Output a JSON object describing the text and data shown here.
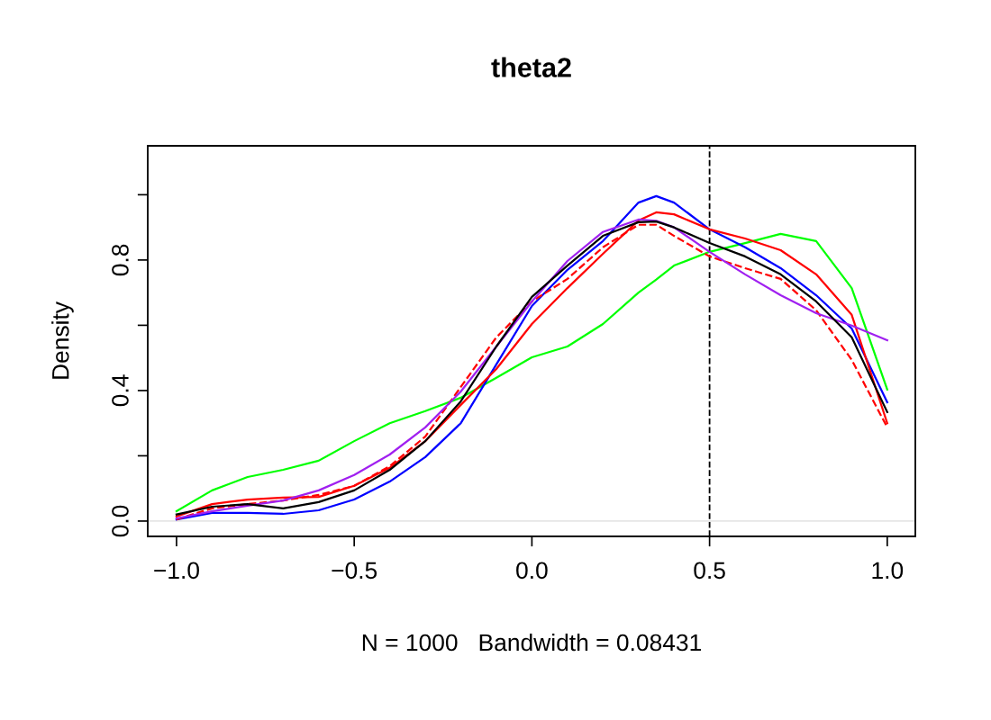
{
  "chart_data": {
    "type": "line",
    "title": "theta2",
    "xlabel": "N = 1000   Bandwidth = 0.08431",
    "ylabel": "Density",
    "x": [
      -1.0,
      -0.9,
      -0.8,
      -0.7,
      -0.6,
      -0.5,
      -0.4,
      -0.3,
      -0.2,
      -0.1,
      0.0,
      0.1,
      0.2,
      0.3,
      0.35,
      0.4,
      0.5,
      0.6,
      0.7,
      0.8,
      0.9,
      1.0
    ],
    "series": [
      {
        "color": "#00ff00",
        "line_style": "solid",
        "values": [
          0.03,
          0.094,
          0.135,
          0.157,
          0.185,
          0.245,
          0.3,
          0.337,
          0.378,
          0.439,
          0.502,
          0.535,
          0.604,
          0.7,
          0.74,
          0.783,
          0.825,
          0.852,
          0.88,
          0.858,
          0.714,
          0.403
        ]
      },
      {
        "color": "#0000ff",
        "line_style": "solid",
        "values": [
          0.005,
          0.025,
          0.025,
          0.022,
          0.033,
          0.066,
          0.121,
          0.196,
          0.3,
          0.48,
          0.659,
          0.77,
          0.858,
          0.976,
          0.996,
          0.976,
          0.894,
          0.839,
          0.775,
          0.692,
          0.59,
          0.364
        ]
      },
      {
        "color": "#ff0000",
        "line_style": "solid",
        "values": [
          0.014,
          0.052,
          0.066,
          0.072,
          0.074,
          0.108,
          0.163,
          0.245,
          0.356,
          0.466,
          0.604,
          0.714,
          0.819,
          0.921,
          0.946,
          0.94,
          0.894,
          0.866,
          0.83,
          0.756,
          0.632,
          0.3
        ]
      },
      {
        "color": "#ff0000",
        "line_style": "dashed",
        "values": [
          0.005,
          0.039,
          0.052,
          0.063,
          0.08,
          0.108,
          0.168,
          0.259,
          0.411,
          0.563,
          0.673,
          0.742,
          0.839,
          0.908,
          0.908,
          0.874,
          0.811,
          0.775,
          0.742,
          0.646,
          0.494,
          0.287
        ]
      },
      {
        "color": "#a020f0",
        "line_style": "solid",
        "values": [
          0.008,
          0.03,
          0.047,
          0.063,
          0.094,
          0.141,
          0.204,
          0.287,
          0.397,
          0.535,
          0.673,
          0.797,
          0.886,
          0.924,
          0.92,
          0.9,
          0.825,
          0.756,
          0.692,
          0.637,
          0.599,
          0.554
        ]
      },
      {
        "color": "#000000",
        "line_style": "solid",
        "values": [
          0.02,
          0.044,
          0.052,
          0.039,
          0.058,
          0.094,
          0.157,
          0.245,
          0.367,
          0.535,
          0.687,
          0.783,
          0.874,
          0.916,
          0.918,
          0.9,
          0.852,
          0.811,
          0.756,
          0.673,
          0.563,
          0.334
        ]
      }
    ],
    "xlim": [
      -1.081,
      1.079
    ],
    "ylim": [
      -0.047,
      1.15
    ],
    "xticks": [
      {
        "value": -1.0,
        "label": "−1.0"
      },
      {
        "value": -0.5,
        "label": "−0.5"
      },
      {
        "value": 0,
        "label": "0.0"
      },
      {
        "value": 0.5,
        "label": "0.5"
      },
      {
        "value": 1.0,
        "label": "1.0"
      }
    ],
    "yticks": [
      {
        "value": 0,
        "label": "0.0"
      },
      {
        "value": 0.2,
        "label": null
      },
      {
        "value": 0.4,
        "label": "0.4"
      },
      {
        "value": 0.6,
        "label": null
      },
      {
        "value": 0.8,
        "label": "0.8"
      },
      {
        "value": 1.0,
        "label": null
      }
    ],
    "ref_lines": [
      {
        "axis": "x",
        "value": 0.5,
        "color": "#000000",
        "line_style": "dashed"
      },
      {
        "axis": "y",
        "value": 0,
        "color": "#e6e6e6",
        "line_style": "solid"
      }
    ],
    "marker": "none",
    "grid": false,
    "legend": false
  }
}
